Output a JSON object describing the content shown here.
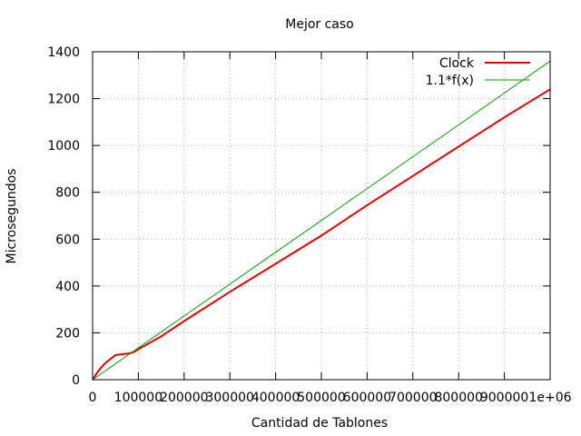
{
  "chart_data": {
    "type": "line",
    "title": "Mejor caso",
    "xlabel": "Cantidad de Tablones",
    "ylabel": "Microsegundos",
    "xlim": [
      0,
      1000000
    ],
    "ylim": [
      0,
      1400
    ],
    "xticks": [
      0,
      100000,
      200000,
      300000,
      400000,
      500000,
      600000,
      700000,
      800000,
      900000,
      1000000
    ],
    "xtick_labels": [
      "0",
      "100000",
      "200000",
      "300000",
      "400000",
      "500000",
      "600000",
      "700000",
      "800000",
      "900000",
      "1e+06"
    ],
    "yticks": [
      0,
      200,
      400,
      600,
      800,
      1000,
      1200,
      1400
    ],
    "ytick_labels": [
      "0",
      "200",
      "400",
      "600",
      "800",
      "1000",
      "1200",
      "1400"
    ],
    "grid": true,
    "legend_position": "top-right",
    "series": [
      {
        "name": "Clock",
        "color": "#e00000",
        "x": [
          0,
          10000,
          20000,
          30000,
          40000,
          50000,
          60000,
          70000,
          80000,
          90000,
          100000,
          150000,
          200000,
          300000,
          400000,
          500000,
          600000,
          700000,
          800000,
          900000,
          950000,
          1000000
        ],
        "y": [
          0,
          30,
          55,
          75,
          90,
          105,
          108,
          110,
          112,
          118,
          130,
          185,
          250,
          375,
          495,
          615,
          745,
          870,
          995,
          1120,
          1180,
          1240
        ]
      },
      {
        "name": "1.1*f(x)",
        "color": "#00a000",
        "x": [
          0,
          100000,
          200000,
          300000,
          400000,
          500000,
          600000,
          700000,
          800000,
          900000,
          1000000
        ],
        "y": [
          0,
          136,
          272,
          408,
          544,
          680,
          816,
          952,
          1088,
          1224,
          1360
        ]
      }
    ]
  }
}
